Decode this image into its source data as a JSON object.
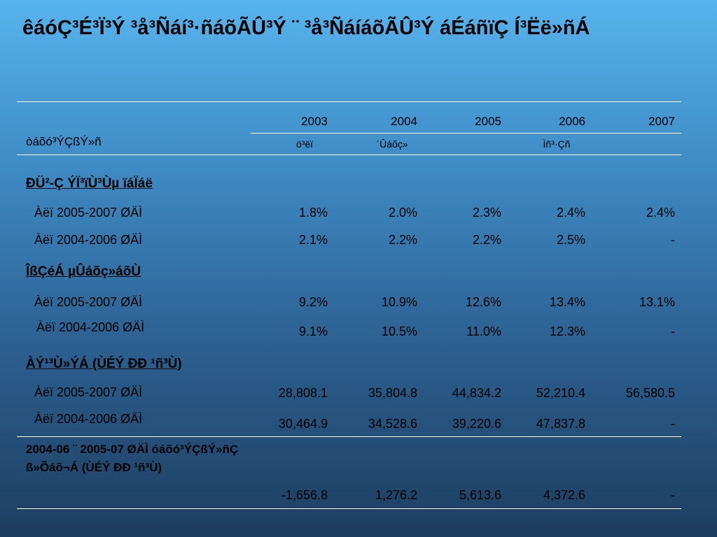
{
  "title": "êáóÇ³É³Ï³Ý ³å³Ñáí³·ñáõÃÛ³Ý ¨ ³å³ÑáíáõÃÛ³Ý áÉáñïÇ Í³Ëë»ñÁ",
  "header": {
    "row_label": "òáõó³ÝÇßÝ»ñ",
    "years": [
      "2003",
      "2004",
      "2005",
      "2006",
      "2007"
    ],
    "subheaders": [
      "ö³ëï",
      "´Ûáõç»",
      "Ìñ³·Çñ"
    ]
  },
  "sections": [
    {
      "heading": "ÐÜ²-Ç ÝÏ³ïÙ³Ùµ ïáÏáë",
      "rows": [
        {
          "label": "Àëï 2005-2007 ØÄÌ",
          "values": [
            "1.8%",
            "2.0%",
            "2.3%",
            "2.4%",
            "2.4%"
          ]
        },
        {
          "label": "Àëï 2004-2006 ØÄÌ",
          "values": [
            "2.1%",
            "2.2%",
            "2.2%",
            "2.5%",
            "-"
          ]
        }
      ]
    },
    {
      "heading": "ÎßÇéÁ µÛáõç»áõÙ",
      "rows": [
        {
          "label": "Àëï 2005-2007 ØÄÌ",
          "values": [
            "9.2%",
            "10.9%",
            "12.6%",
            "13.4%",
            "13.1%"
          ]
        },
        {
          "label": "Àëï 2004-2006 ØÄÌ",
          "values": [
            "9.1%",
            "10.5%",
            "11.0%",
            "12.3%",
            "-"
          ]
        }
      ]
    },
    {
      "heading": "ÀÝ¹³Ù»ÝÁ (ÙÉÝ ÐÐ ¹ñ³Ù)",
      "rows": [
        {
          "label": "Àëï 2005-2007 ØÄÌ",
          "values": [
            "28,808.1",
            "35,804.8",
            "44,834.2",
            "52,210.4",
            "56,580.5"
          ]
        },
        {
          "label": "Àëï 2004-2006 ØÄÌ",
          "values": [
            "30,464.9",
            "34,528.6",
            "39,220.6",
            "47,837.8",
            "-"
          ]
        }
      ]
    }
  ],
  "diff_row": {
    "label": "2004-06 ¨ 2005-07 ØÄÌ óáõó³ÝÇßÝ»ñÇ ß»Õáõ¬Á (ÙÉÝ ÐÐ ¹ñ³Ù)",
    "values": [
      "-1,656.8",
      "1,276.2",
      "5,613.6",
      "4,372.6",
      "-"
    ]
  }
}
